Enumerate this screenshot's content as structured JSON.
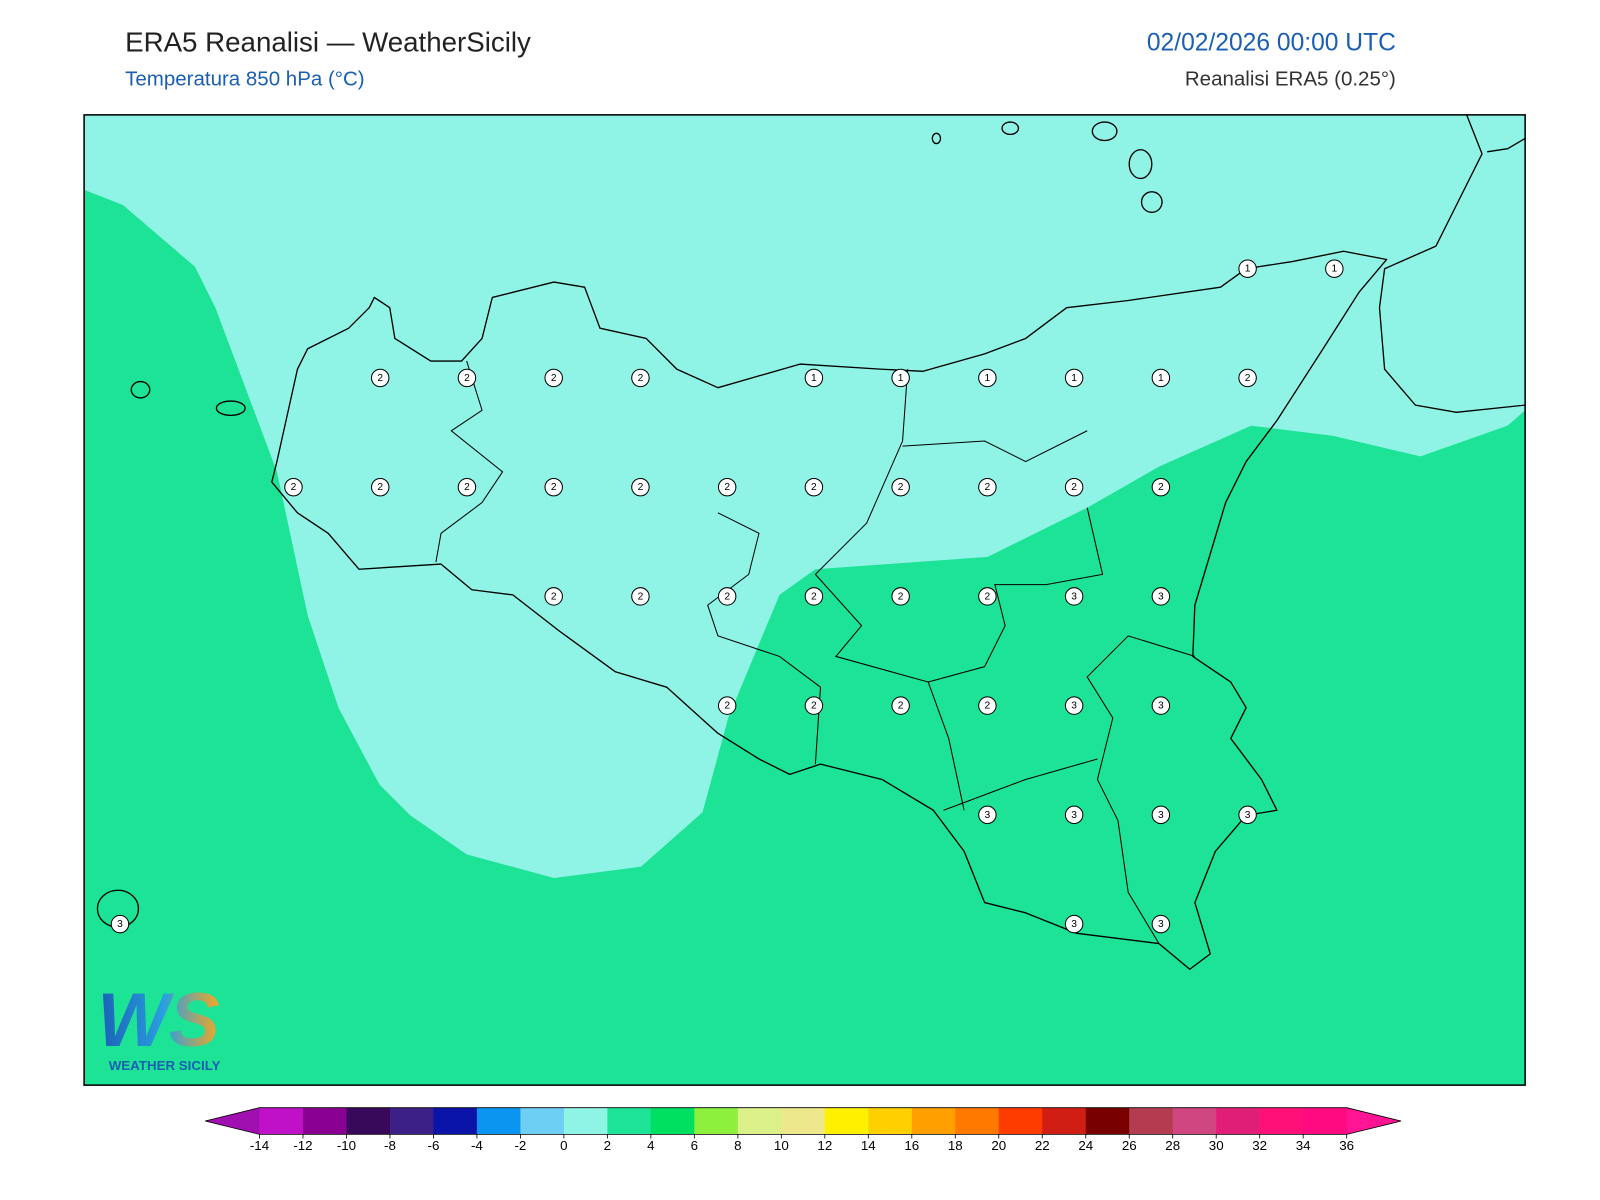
{
  "header": {
    "title": "ERA5 Reanalisi — WeatherSicily",
    "subtitle": "Temperatura 850 hPa (°C)",
    "datetime": "02/02/2026 00:00 UTC",
    "source": "Reanalisi ERA5 (0.25°)"
  },
  "stations": {
    "grid": [
      [
        null,
        null,
        null,
        null,
        null,
        null,
        null,
        null,
        null,
        null,
        null,
        null,
        null,
        1,
        1
      ],
      [
        null,
        null,
        null,
        2,
        2,
        2,
        2,
        null,
        1,
        1,
        1,
        1,
        1,
        2,
        null
      ],
      [
        null,
        null,
        2,
        2,
        2,
        2,
        2,
        2,
        2,
        2,
        2,
        2,
        2,
        null,
        null
      ],
      [
        null,
        null,
        null,
        null,
        null,
        2,
        2,
        2,
        2,
        2,
        2,
        3,
        3,
        null,
        null
      ],
      [
        null,
        null,
        null,
        null,
        null,
        null,
        null,
        2,
        2,
        2,
        2,
        3,
        3,
        null,
        null
      ],
      [
        null,
        null,
        null,
        null,
        null,
        null,
        null,
        null,
        null,
        null,
        3,
        3,
        3,
        3,
        null
      ],
      [
        3,
        null,
        null,
        null,
        null,
        null,
        null,
        null,
        null,
        null,
        null,
        3,
        3,
        null,
        null
      ]
    ]
  },
  "colorbar": {
    "ticks": [
      -14,
      -12,
      -10,
      -8,
      -6,
      -4,
      -2,
      0,
      2,
      4,
      6,
      8,
      10,
      12,
      14,
      16,
      18,
      20,
      22,
      24,
      26,
      28,
      30,
      32,
      34,
      36
    ],
    "colors": [
      "#c010c8",
      "#8a0090",
      "#38085a",
      "#3c1f87",
      "#0a14a8",
      "#0a96f0",
      "#6ecff5",
      "#8ff3e5",
      "#1de396",
      "#00e060",
      "#8cf03c",
      "#dcf08a",
      "#eee88c",
      "#fff000",
      "#ffd000",
      "#ffa000",
      "#ff7800",
      "#ff3c00",
      "#d01e14",
      "#780000",
      "#b43c50",
      "#d04680",
      "#e01e78",
      "#ff1078",
      "#ff0a80"
    ],
    "extend_colors": [
      "#a010b0",
      "#ff1493"
    ]
  },
  "logo": {
    "mark": "WS",
    "caption": "WEATHER SICILY"
  }
}
